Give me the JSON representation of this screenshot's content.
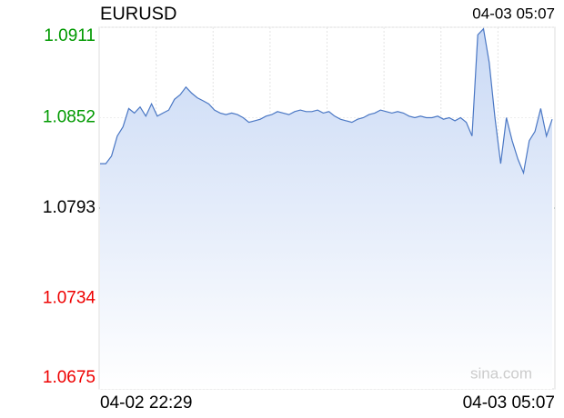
{
  "chart_data": {
    "type": "line",
    "title": "EURUSD",
    "time": "04-03 05:07",
    "watermark": "sina.com",
    "x_labels": [
      "04-02 22:29",
      "04-03 05:07"
    ],
    "ylim": [
      1.0675,
      1.0911
    ],
    "yticks": [
      1.0675,
      1.0734,
      1.0793,
      1.0852,
      1.0911
    ],
    "base": 1.0793,
    "color": "#4a77c4",
    "color_up": "#009900",
    "color_down": "#ee0000",
    "grid": true,
    "values": [
      1.0822,
      1.0822,
      1.0827,
      1.084,
      1.0846,
      1.0858,
      1.0855,
      1.0859,
      1.0853,
      1.0861,
      1.0853,
      1.0855,
      1.0857,
      1.0864,
      1.0867,
      1.0872,
      1.0868,
      1.0865,
      1.0863,
      1.0861,
      1.0857,
      1.0855,
      1.0854,
      1.0855,
      1.0854,
      1.0852,
      1.0849,
      1.085,
      1.0851,
      1.0853,
      1.0854,
      1.0856,
      1.0855,
      1.0854,
      1.0856,
      1.0857,
      1.0856,
      1.0856,
      1.0857,
      1.0855,
      1.0856,
      1.0853,
      1.0851,
      1.085,
      1.0849,
      1.0851,
      1.0852,
      1.0854,
      1.0855,
      1.0857,
      1.0856,
      1.0855,
      1.0856,
      1.0855,
      1.0853,
      1.0852,
      1.0853,
      1.0852,
      1.0852,
      1.0853,
      1.0851,
      1.0852,
      1.085,
      1.0852,
      1.0849,
      1.084,
      1.0906,
      1.091,
      1.0888,
      1.0852,
      1.0822,
      1.0852,
      1.0837,
      1.0825,
      1.0816,
      1.0837,
      1.0843,
      1.0858,
      1.084,
      1.0851
    ]
  }
}
